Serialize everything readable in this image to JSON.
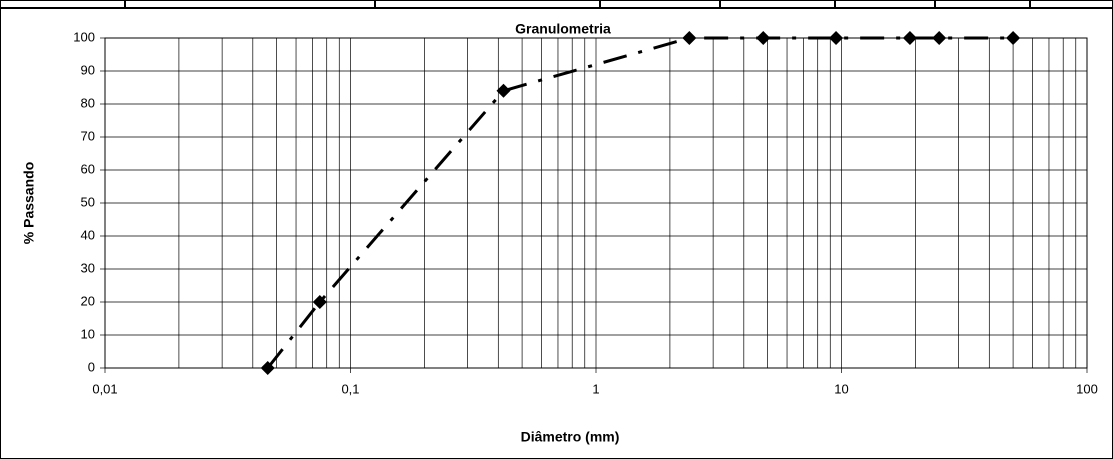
{
  "chart_data": {
    "type": "line",
    "title": "Granulometria",
    "xlabel": "Diâmetro (mm)",
    "ylabel": "% Passando",
    "xscale": "log",
    "x": [
      0.046,
      0.075,
      0.42,
      2.4,
      4.8,
      9.5,
      19,
      25,
      50
    ],
    "series": [
      {
        "name": "Granulometria",
        "color": "#000000",
        "values": [
          0,
          20,
          84,
          100,
          100,
          100,
          100,
          100,
          100
        ]
      }
    ],
    "xlim": [
      0.01,
      100
    ],
    "xticks": [
      {
        "value": 0.01,
        "label": "0,01"
      },
      {
        "value": 0.1,
        "label": "0,1"
      },
      1,
      10,
      100
    ],
    "xminorticks": [
      0.02,
      0.03,
      0.04,
      0.05,
      0.06,
      0.07,
      0.08,
      0.09,
      0.2,
      0.3,
      0.4,
      0.5,
      0.6,
      0.7,
      0.8,
      0.9,
      2,
      3,
      4,
      5,
      6,
      7,
      8,
      9,
      20,
      30,
      40,
      50,
      60,
      70,
      80,
      90
    ],
    "ylim": [
      0,
      100
    ],
    "yticks": [
      0,
      10,
      20,
      30,
      40,
      50,
      60,
      70,
      80,
      90,
      100
    ],
    "grid": true
  }
}
